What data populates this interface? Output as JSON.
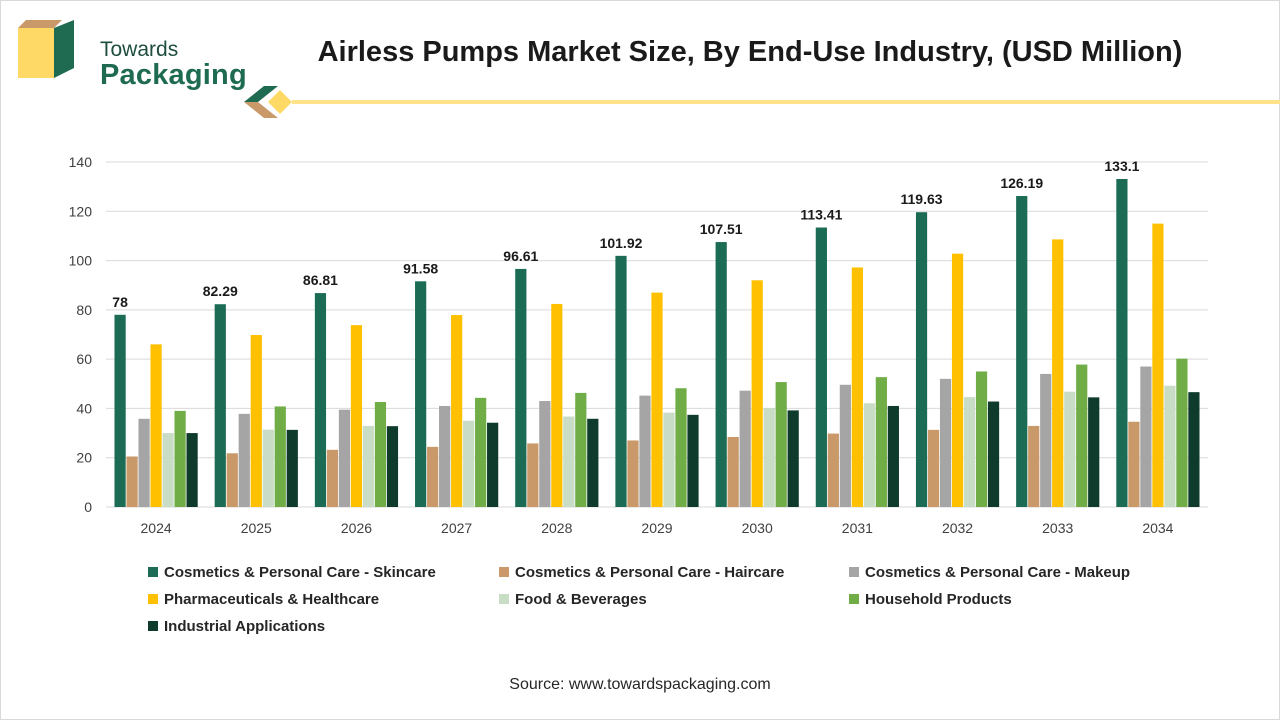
{
  "brand": {
    "line1": "Towards",
    "line2": "Packaging"
  },
  "title": "Airless Pumps Market Size, By End-Use Industry, (USD Million)",
  "source": "Source: www.towardspackaging.com",
  "colors": {
    "accent_yellow": "#ffe38a",
    "brand_green": "#1e6b52"
  },
  "chart_data": {
    "type": "bar",
    "title": "Airless Pumps Market Size, By End-Use Industry, (USD Million)",
    "xlabel": "",
    "ylabel": "",
    "ylim": [
      0,
      140
    ],
    "yticks": [
      0,
      20,
      40,
      60,
      80,
      100,
      120,
      140
    ],
    "grid": true,
    "legend_position": "bottom",
    "categories": [
      "2024",
      "2025",
      "2026",
      "2027",
      "2028",
      "2029",
      "2030",
      "2031",
      "2032",
      "2033",
      "2034"
    ],
    "series": [
      {
        "name": "Cosmetics & Personal Care - Skincare",
        "color": "#1b6b55",
        "values": [
          78,
          82.29,
          86.81,
          91.58,
          96.61,
          101.92,
          107.51,
          113.41,
          119.63,
          126.19,
          133.1
        ],
        "labels": [
          "78",
          "82.29",
          "86.81",
          "91.58",
          "96.61",
          "101.92",
          "107.51",
          "113.41",
          "119.63",
          "126.19",
          "133.1"
        ]
      },
      {
        "name": "Cosmetics & Personal Care - Haircare",
        "color": "#c9996a",
        "values": [
          20.5,
          21.8,
          23.2,
          24.4,
          25.8,
          27.0,
          28.4,
          29.8,
          31.3,
          32.9,
          34.6
        ]
      },
      {
        "name": "Cosmetics & Personal Care - Makeup",
        "color": "#a5a5a5",
        "values": [
          35.8,
          37.8,
          39.5,
          41.0,
          43.0,
          45.2,
          47.2,
          49.6,
          52.0,
          54.0,
          57.0
        ]
      },
      {
        "name": "Pharmaceuticals & Healthcare",
        "color": "#ffc000",
        "values": [
          66.0,
          69.8,
          73.8,
          77.9,
          82.4,
          87.0,
          92.0,
          97.2,
          102.8,
          108.6,
          115.0
        ]
      },
      {
        "name": "Food & Beverages",
        "color": "#c9ddc6",
        "values": [
          30.0,
          31.4,
          32.9,
          35.0,
          36.7,
          38.3,
          40.2,
          42.1,
          44.6,
          46.8,
          49.2
        ]
      },
      {
        "name": "Household Products",
        "color": "#70ad47",
        "values": [
          39.0,
          40.8,
          42.6,
          44.3,
          46.3,
          48.2,
          50.7,
          52.7,
          55.0,
          57.8,
          60.2
        ]
      },
      {
        "name": "Industrial Applications",
        "color": "#0e3b2b",
        "values": [
          30.0,
          31.3,
          32.8,
          34.2,
          35.8,
          37.4,
          39.2,
          41.0,
          42.8,
          44.5,
          46.6
        ]
      }
    ]
  }
}
